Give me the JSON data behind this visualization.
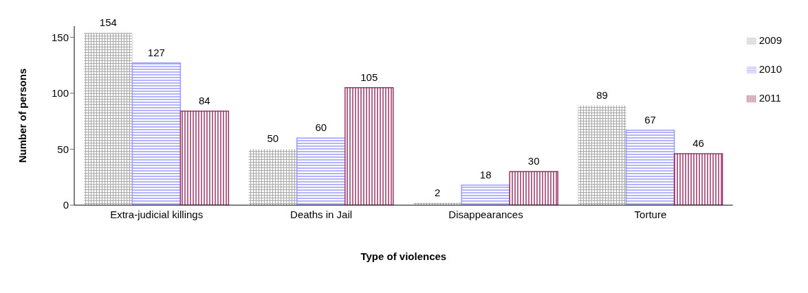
{
  "chart_data": {
    "type": "bar",
    "xlabel": "Type of violences",
    "ylabel": "Number of persons",
    "categories": [
      "Extra-judicial killings",
      "Deaths in Jail",
      "Disappearances",
      "Torture"
    ],
    "series": [
      {
        "name": "2009",
        "color": "#a6a6a6",
        "values": [
          154,
          50,
          2,
          89
        ]
      },
      {
        "name": "2010",
        "color": "#9999ff",
        "values": [
          127,
          60,
          18,
          67
        ]
      },
      {
        "name": "2011",
        "color": "#993366",
        "values": [
          84,
          105,
          30,
          46
        ]
      }
    ],
    "ylim": [
      0,
      160
    ],
    "yticks": [
      0,
      50,
      100,
      150
    ],
    "grid": false,
    "legend": "top right",
    "data_labels": true
  }
}
